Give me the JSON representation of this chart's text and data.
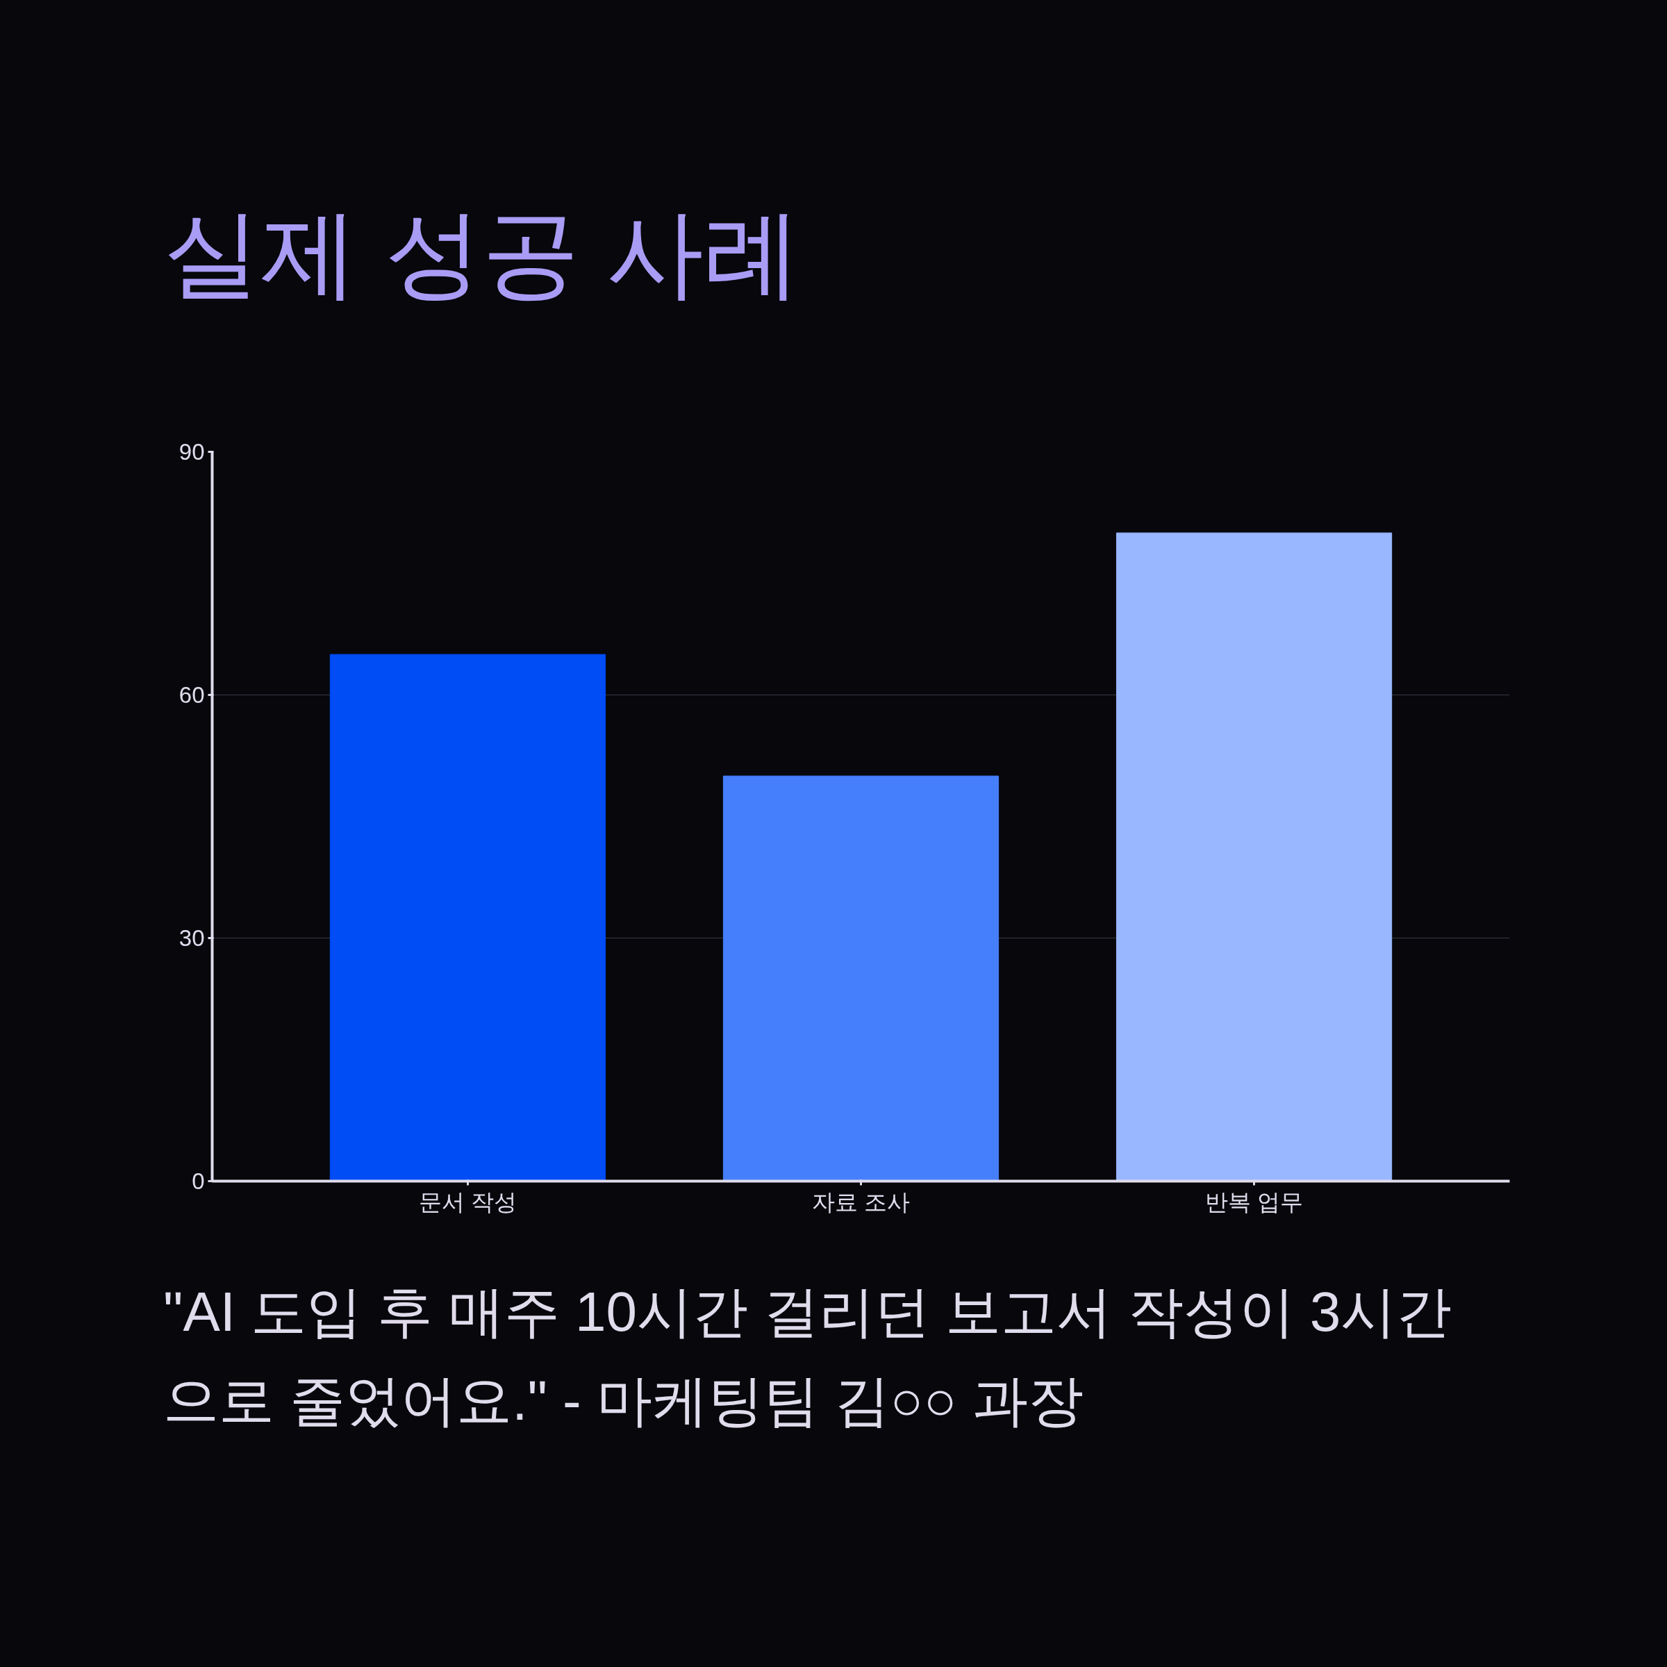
{
  "chart_data": {
    "type": "bar",
    "title": "실제 성공 사례",
    "categories": [
      "문서 작성",
      "자료 조사",
      "반복 업무"
    ],
    "values": [
      65,
      50,
      80
    ],
    "colors": [
      "#004cf5",
      "#467ffc",
      "#98b7fe"
    ],
    "ylim": [
      0,
      90
    ],
    "yticks": [
      0,
      30,
      60,
      90
    ],
    "grid": "y",
    "annotations": [
      "\"AI 도입 후 매주 10시간 걸리던 보고서 작성이 3시간으로 줄었어요.\" - 마케팅팀 김○○ 과장"
    ]
  }
}
